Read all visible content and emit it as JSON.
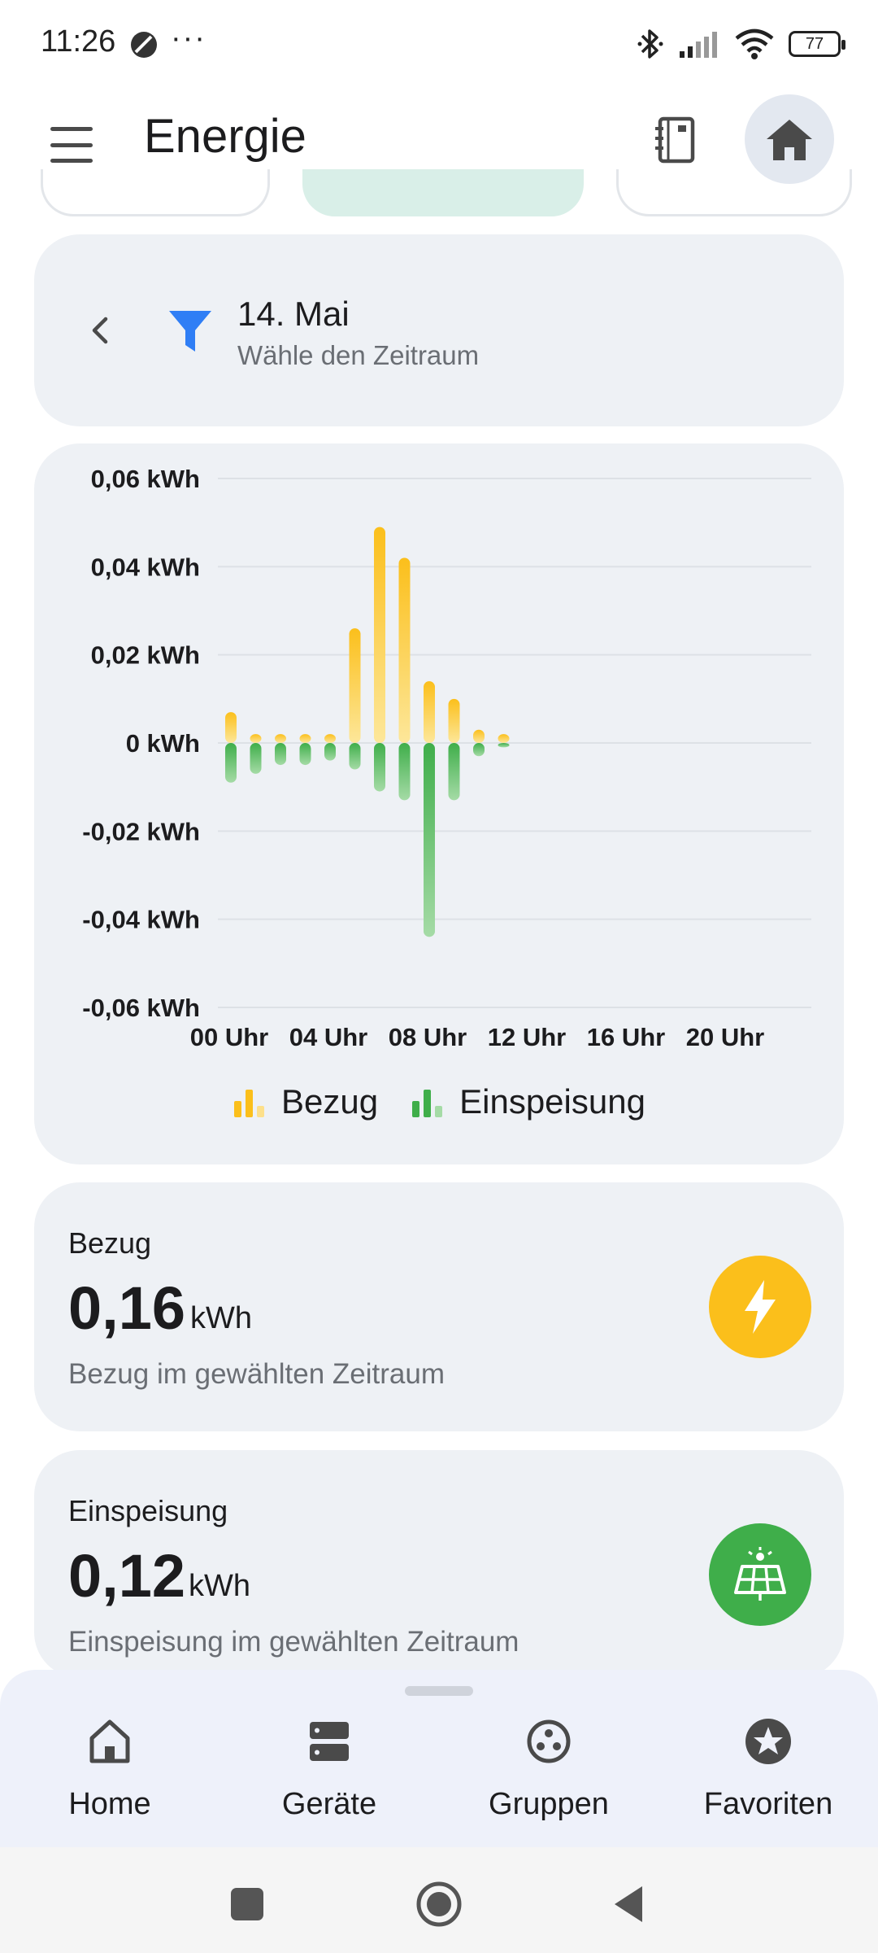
{
  "status_bar": {
    "time": "11:26",
    "dots": "···",
    "battery": "77"
  },
  "appbar": {
    "title": "Energie"
  },
  "filter": {
    "title": "14. Mai",
    "subtitle": "Wähle den Zeitraum"
  },
  "chart_data": {
    "type": "bar",
    "x_ticks": [
      "00 Uhr",
      "04 Uhr",
      "08 Uhr",
      "12 Uhr",
      "16 Uhr",
      "20 Uhr"
    ],
    "y_ticks": [
      "0,06 kWh",
      "0,04 kWh",
      "0,02 kWh",
      "0 kWh",
      "-0,02 kWh",
      "-0,04 kWh",
      "-0,06 kWh"
    ],
    "ylim": [
      -0.06,
      0.06
    ],
    "hours": [
      0,
      1,
      2,
      3,
      4,
      5,
      6,
      7,
      8,
      9,
      10,
      11
    ],
    "series": [
      {
        "name": "Bezug",
        "color": "#fbbf1b",
        "values": [
          0.007,
          0.002,
          0.002,
          0.002,
          0.002,
          0.026,
          0.049,
          0.042,
          0.014,
          0.01,
          0.003,
          0.002
        ]
      },
      {
        "name": "Einspeisung",
        "color": "#3fae4a",
        "values": [
          -0.009,
          -0.007,
          -0.005,
          -0.005,
          -0.004,
          -0.006,
          -0.011,
          -0.013,
          -0.044,
          -0.013,
          -0.003,
          -0.001
        ]
      }
    ],
    "grid": true,
    "legend": "bottom"
  },
  "stats": {
    "bezug": {
      "label": "Bezug",
      "value": "0,16",
      "unit": "kWh",
      "description": "Bezug im gewählten Zeitraum",
      "icon": "lightning-icon",
      "icon_color": "#fbbf1b"
    },
    "einspeisung": {
      "label": "Einspeisung",
      "value": "0,12",
      "unit": "kWh",
      "description": "Einspeisung im gewählten Zeitraum",
      "icon": "solar-panel-icon",
      "icon_color": "#3fae4a"
    }
  },
  "bottom_nav": {
    "items": [
      {
        "label": "Home",
        "icon": "home-outline-icon"
      },
      {
        "label": "Geräte",
        "icon": "devices-icon"
      },
      {
        "label": "Gruppen",
        "icon": "groups-icon"
      },
      {
        "label": "Favoriten",
        "icon": "star-icon"
      }
    ]
  }
}
